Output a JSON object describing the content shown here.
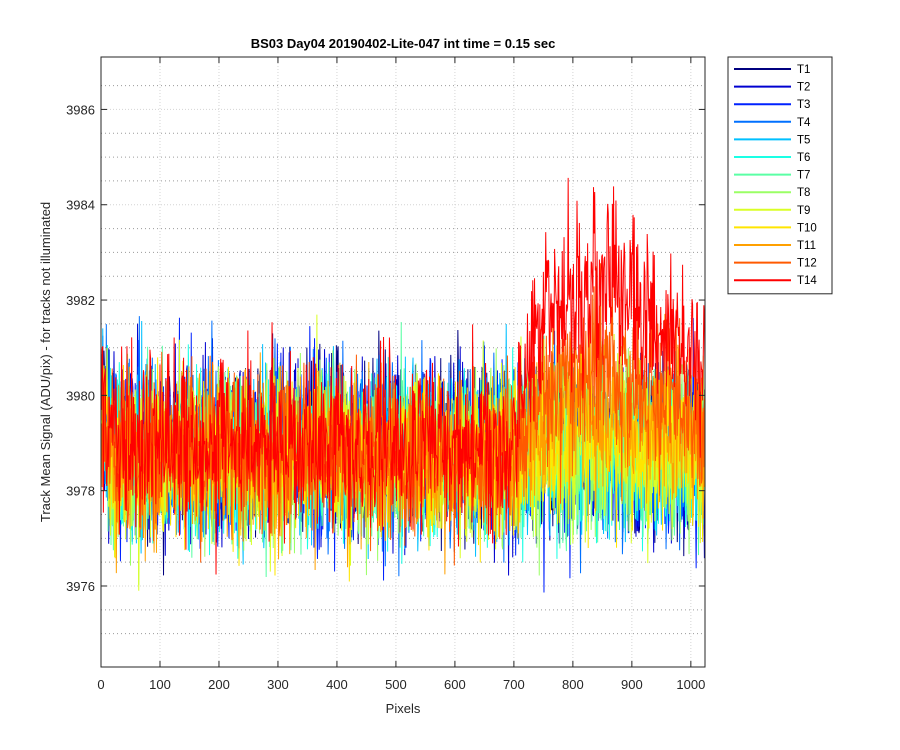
{
  "chart_data": {
    "type": "line",
    "title": "BS03 Day04 20190402-Lite-047 int time = 0.15 sec",
    "xlabel": "Pixels",
    "ylabel": "Track Mean Signal (ADU/pix) - for tracks not illuminated",
    "xlim": [
      0,
      1024
    ],
    "ylim": [
      3974.3,
      3987.1
    ],
    "x_ticks": [
      0,
      100,
      200,
      300,
      400,
      500,
      600,
      700,
      800,
      900,
      1000
    ],
    "y_ticks": [
      3976,
      3978,
      3980,
      3982,
      3984,
      3986
    ],
    "y_minor_ticks": [
      3975,
      3975.5,
      3976.5,
      3977,
      3977.5,
      3978.5,
      3979,
      3979.5,
      3980.5,
      3981,
      3981.5,
      3982.5,
      3983,
      3983.5,
      3984.5,
      3985,
      3985.5,
      3986.5
    ],
    "grid": true,
    "legend_position": "outside-top-right",
    "x_range_per_series": [
      1,
      1024
    ],
    "series": [
      {
        "name": "T1",
        "color": "#00007f",
        "baseline": 3978.9,
        "late_rise": 0.0,
        "noise": 1.05
      },
      {
        "name": "T2",
        "color": "#0000d0",
        "baseline": 3978.9,
        "late_rise": 0.0,
        "noise": 1.05
      },
      {
        "name": "T3",
        "color": "#0022ff",
        "baseline": 3978.8,
        "late_rise": 0.0,
        "noise": 1.05
      },
      {
        "name": "T4",
        "color": "#0070ff",
        "baseline": 3978.8,
        "late_rise": 0.0,
        "noise": 1.05
      },
      {
        "name": "T5",
        "color": "#00c0ff",
        "baseline": 3978.8,
        "late_rise": 0.0,
        "noise": 1.05
      },
      {
        "name": "T6",
        "color": "#1affe5",
        "baseline": 3978.7,
        "late_rise": 0.0,
        "noise": 1.0
      },
      {
        "name": "T7",
        "color": "#5affa5",
        "baseline": 3978.7,
        "late_rise": 0.1,
        "noise": 1.0
      },
      {
        "name": "T8",
        "color": "#9aff65",
        "baseline": 3978.7,
        "late_rise": 0.2,
        "noise": 1.0
      },
      {
        "name": "T9",
        "color": "#daff25",
        "baseline": 3978.7,
        "late_rise": 0.3,
        "noise": 1.0
      },
      {
        "name": "T10",
        "color": "#ffe500",
        "baseline": 3978.7,
        "late_rise": 0.5,
        "noise": 1.0
      },
      {
        "name": "T11",
        "color": "#ffa000",
        "baseline": 3978.7,
        "late_rise": 0.9,
        "noise": 1.0
      },
      {
        "name": "T12",
        "color": "#ff5a00",
        "baseline": 3978.8,
        "late_rise": 1.6,
        "noise": 1.0
      },
      {
        "name": "T14",
        "color": "#ff0000",
        "baseline": 3979.0,
        "late_rise": 3.2,
        "noise": 1.05
      }
    ]
  }
}
